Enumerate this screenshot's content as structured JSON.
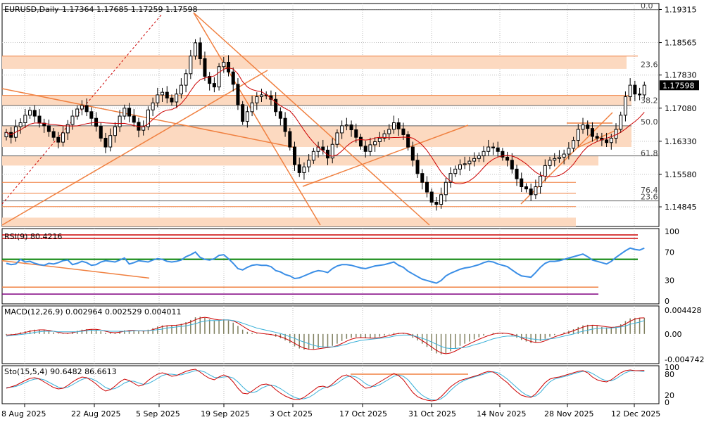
{
  "header": {
    "symbol_timeframe": "EURUSD,Daily",
    "ohlc": "1.17364 1.17685 1.17259 1.17598"
  },
  "colors": {
    "bull": "#ffffff",
    "bear": "#000000",
    "ma": "#cc0000",
    "fib_zone": "#fcd9c0",
    "trend": "#f08040",
    "rsi": "#3a8ee6",
    "macd_main": "#cc0000",
    "macd_signal": "#3ab0d8",
    "macd_hist": "#808060",
    "stoch_main": "#cc0000",
    "stoch_signal": "#3ab0d8",
    "grid": "#c0c0c0",
    "current_price_bg": "#000000"
  },
  "chart_data": [
    {
      "type": "candlestick",
      "name": "price",
      "y_ticks": [
        "1.19315",
        "1.18565",
        "1.17830",
        "1.17080",
        "1.16330",
        "1.15580",
        "1.14845"
      ],
      "y_range": [
        1.144,
        1.1945
      ],
      "current_price": "1.17598",
      "fib_labels": [
        {
          "label": "0.0",
          "value": 1.1931
        },
        {
          "label": "23.6",
          "value": 1.1798
        },
        {
          "label": "38.2",
          "value": 1.1716
        },
        {
          "label": "50.0",
          "value": 1.1668
        },
        {
          "label": "61.8",
          "value": 1.1597
        },
        {
          "label": "76.4",
          "value": 1.1513
        },
        {
          "label": "23.6",
          "value": 1.1498
        }
      ],
      "x_labels": [
        "8 Aug 2025",
        "22 Aug 2025",
        "5 Sep 2025",
        "19 Sep 2025",
        "3 Oct 2025",
        "17 Oct 2025",
        "31 Oct 2025",
        "14 Nov 2025",
        "28 Nov 2025",
        "12 Dec 2025"
      ],
      "closes": [
        1.1653,
        1.1642,
        1.1666,
        1.1675,
        1.1692,
        1.1703,
        1.169,
        1.1674,
        1.1668,
        1.1655,
        1.1642,
        1.1631,
        1.1652,
        1.1671,
        1.169,
        1.1706,
        1.1714,
        1.17,
        1.1685,
        1.1667,
        1.164,
        1.162,
        1.1646,
        1.1666,
        1.169,
        1.1708,
        1.169,
        1.1676,
        1.1658,
        1.1666,
        1.1704,
        1.172,
        1.1738,
        1.1744,
        1.1731,
        1.1722,
        1.174,
        1.176,
        1.1786,
        1.1826,
        1.1856,
        1.182,
        1.178,
        1.1764,
        1.1756,
        1.1802,
        1.1812,
        1.179,
        1.1762,
        1.1716,
        1.1678,
        1.17,
        1.172,
        1.1734,
        1.1738,
        1.1736,
        1.1728,
        1.17,
        1.1685,
        1.1655,
        1.162,
        1.158,
        1.1562,
        1.1575,
        1.159,
        1.161,
        1.162,
        1.1613,
        1.1595,
        1.1626,
        1.1652,
        1.1668,
        1.167,
        1.1659,
        1.1642,
        1.1622,
        1.161,
        1.1625,
        1.1632,
        1.164,
        1.165,
        1.166,
        1.1675,
        1.1661,
        1.1648,
        1.162,
        1.159,
        1.156,
        1.154,
        1.1518,
        1.1495,
        1.149,
        1.1512,
        1.154,
        1.156,
        1.157,
        1.158,
        1.1582,
        1.1588,
        1.1594,
        1.16,
        1.161,
        1.162,
        1.1618,
        1.161,
        1.1597,
        1.159,
        1.157,
        1.1548,
        1.153,
        1.1525,
        1.1512,
        1.153,
        1.1554,
        1.1578,
        1.159,
        1.1594,
        1.1597,
        1.1604,
        1.1617,
        1.1635,
        1.166,
        1.167,
        1.1662,
        1.1644,
        1.164,
        1.1636,
        1.163,
        1.164,
        1.166,
        1.1692,
        1.1734,
        1.176,
        1.174,
        1.1738,
        1.176
      ],
      "ma_label": "moving average"
    },
    {
      "type": "line",
      "name": "RSI",
      "title": "RSI(9) 80.4216",
      "y_ticks": [
        "100",
        "70",
        "30",
        "0"
      ],
      "ylim": [
        0,
        100
      ],
      "levels": [
        85,
        80,
        70,
        20,
        10
      ],
      "values": [
        57,
        55,
        56,
        63,
        59,
        60,
        57,
        55,
        54,
        57,
        56,
        58,
        61,
        62,
        55,
        57,
        60,
        58,
        54,
        55,
        59,
        61,
        60,
        59,
        62,
        65,
        56,
        58,
        61,
        60,
        59,
        62,
        64,
        63,
        60,
        59,
        60,
        62,
        67,
        70,
        74,
        66,
        63,
        62,
        64,
        69,
        70,
        64,
        57,
        49,
        47,
        51,
        54,
        55,
        54,
        54,
        52,
        46,
        44,
        40,
        38,
        34,
        35,
        38,
        41,
        44,
        46,
        45,
        43,
        49,
        53,
        55,
        55,
        54,
        52,
        50,
        49,
        51,
        53,
        54,
        55,
        57,
        59,
        54,
        51,
        45,
        41,
        37,
        33,
        31,
        29,
        27,
        31,
        38,
        42,
        45,
        48,
        50,
        51,
        53,
        55,
        58,
        60,
        59,
        56,
        54,
        52,
        47,
        42,
        38,
        37,
        36,
        43,
        51,
        57,
        60,
        60,
        61,
        63,
        65,
        67,
        69,
        71,
        67,
        62,
        60,
        58,
        56,
        60,
        66,
        71,
        76,
        80,
        78,
        77,
        80
      ]
    },
    {
      "type": "bar+line",
      "name": "MACD",
      "title": "MACD(12,26,9) 0.002964 0.002529 0.004011",
      "y_ticks": [
        "0.004428",
        "0.00",
        "-0.004742"
      ],
      "ylim": [
        -0.0055,
        0.0052
      ],
      "series": [
        {
          "name": "main",
          "values": [
            -0.0002,
            -0.0001,
            0.0001,
            0.0003,
            0.0005,
            0.0007,
            0.0008,
            0.0008,
            0.0007,
            0.0005,
            0.0003,
            0.0001,
            0.0001,
            0.0002,
            0.0004,
            0.0006,
            0.0008,
            0.0009,
            0.0009,
            0.0008,
            0.0005,
            0.0002,
            0.0002,
            0.0003,
            0.0005,
            0.0007,
            0.0007,
            0.0006,
            0.0005,
            0.0005,
            0.0008,
            0.0011,
            0.0014,
            0.0016,
            0.0016,
            0.0016,
            0.0017,
            0.0019,
            0.0022,
            0.0026,
            0.0031,
            0.0032,
            0.003,
            0.0027,
            0.0025,
            0.0026,
            0.0027,
            0.0025,
            0.0021,
            0.0015,
            0.0008,
            0.0004,
            0.0002,
            0.0001,
            0.0,
            -0.0001,
            -0.0002,
            -0.0005,
            -0.0008,
            -0.0012,
            -0.0017,
            -0.0023,
            -0.0027,
            -0.0029,
            -0.0029,
            -0.0028,
            -0.0026,
            -0.0025,
            -0.0025,
            -0.0022,
            -0.0018,
            -0.0013,
            -0.0009,
            -0.0007,
            -0.0006,
            -0.0007,
            -0.0008,
            -0.0008,
            -0.0007,
            -0.0005,
            -0.0003,
            -0.0001,
            0.0002,
            0.0002,
            0.0001,
            -0.0002,
            -0.0007,
            -0.0012,
            -0.0018,
            -0.0024,
            -0.0031,
            -0.0036,
            -0.0038,
            -0.0036,
            -0.0032,
            -0.0027,
            -0.0022,
            -0.0018,
            -0.0014,
            -0.001,
            -0.0006,
            -0.0003,
            0.0,
            0.0002,
            0.0002,
            0.0001,
            0.0,
            -0.0003,
            -0.0007,
            -0.0011,
            -0.0014,
            -0.0017,
            -0.0016,
            -0.0013,
            -0.0009,
            -0.0005,
            -0.0002,
            0.0,
            0.0003,
            0.0006,
            0.0009,
            0.0013,
            0.0016,
            0.0017,
            0.0016,
            0.0015,
            0.0013,
            0.0012,
            0.0012,
            0.0014,
            0.0018,
            0.0024,
            0.0029,
            0.003,
            0.003,
            0.003
          ]
        },
        {
          "name": "signal",
          "values": [
            -0.0004,
            -0.0003,
            -0.0002,
            -0.0001,
            0.0,
            0.0001,
            0.0003,
            0.0004,
            0.0005,
            0.0005,
            0.0005,
            0.0004,
            0.0004,
            0.0004,
            0.0004,
            0.0004,
            0.0005,
            0.0006,
            0.0007,
            0.0007,
            0.0007,
            0.0006,
            0.0005,
            0.0005,
            0.0005,
            0.0005,
            0.0005,
            0.0006,
            0.0006,
            0.0006,
            0.0006,
            0.0007,
            0.0008,
            0.0009,
            0.0011,
            0.0012,
            0.0013,
            0.0014,
            0.0015,
            0.0017,
            0.0019,
            0.0022,
            0.0024,
            0.0025,
            0.0025,
            0.0025,
            0.0026,
            0.0026,
            0.0025,
            0.0023,
            0.002,
            0.0017,
            0.0014,
            0.0011,
            0.0009,
            0.0007,
            0.0005,
            0.0003,
            0.0001,
            -0.0002,
            -0.0005,
            -0.0008,
            -0.0012,
            -0.0015,
            -0.0018,
            -0.0021,
            -0.0023,
            -0.0024,
            -0.0024,
            -0.0024,
            -0.0023,
            -0.0021,
            -0.0019,
            -0.0016,
            -0.0014,
            -0.0012,
            -0.0011,
            -0.001,
            -0.0009,
            -0.0008,
            -0.0007,
            -0.0006,
            -0.0004,
            -0.0003,
            -0.0002,
            -0.0002,
            -0.0003,
            -0.0005,
            -0.0008,
            -0.0011,
            -0.0015,
            -0.0019,
            -0.0023,
            -0.0026,
            -0.0027,
            -0.0027,
            -0.0026,
            -0.0025,
            -0.0023,
            -0.002,
            -0.0018,
            -0.0015,
            -0.0012,
            -0.0009,
            -0.0007,
            -0.0005,
            -0.0004,
            -0.0004,
            -0.0004,
            -0.0006,
            -0.0007,
            -0.0009,
            -0.001,
            -0.0011,
            -0.001,
            -0.0009,
            -0.0008,
            -0.0006,
            -0.0004,
            -0.0002,
            0.0,
            0.0003,
            0.0005,
            0.0007,
            0.0009,
            0.001,
            0.0011,
            0.0011,
            0.0011,
            0.0012,
            0.0013,
            0.0015,
            0.0018,
            0.002,
            0.0022,
            0.0025
          ]
        }
      ]
    },
    {
      "type": "line",
      "name": "Stochastic",
      "title": "Sto(15,5,4) 90.6482 86.6613",
      "y_ticks": [
        "100",
        "80",
        "20",
        "0"
      ],
      "ylim": [
        0,
        100
      ],
      "series": [
        {
          "name": "main",
          "values": [
            40,
            44,
            48,
            55,
            62,
            68,
            70,
            66,
            58,
            50,
            42,
            38,
            40,
            48,
            58,
            66,
            72,
            70,
            62,
            52,
            40,
            32,
            36,
            46,
            58,
            66,
            62,
            54,
            46,
            50,
            62,
            72,
            80,
            84,
            80,
            74,
            76,
            82,
            88,
            92,
            94,
            86,
            76,
            68,
            64,
            72,
            78,
            72,
            58,
            40,
            26,
            24,
            32,
            42,
            50,
            52,
            48,
            36,
            26,
            18,
            12,
            8,
            8,
            14,
            24,
            34,
            44,
            46,
            42,
            52,
            64,
            74,
            78,
            72,
            62,
            50,
            40,
            42,
            50,
            58,
            66,
            74,
            82,
            76,
            64,
            46,
            28,
            16,
            10,
            6,
            4,
            6,
            16,
            30,
            44,
            54,
            62,
            66,
            70,
            74,
            78,
            84,
            88,
            86,
            78,
            66,
            56,
            42,
            30,
            20,
            16,
            14,
            24,
            40,
            56,
            66,
            70,
            72,
            76,
            80,
            84,
            88,
            90,
            84,
            72,
            64,
            60,
            58,
            64,
            74,
            84,
            90,
            92,
            90,
            90,
            91
          ]
        },
        {
          "name": "signal",
          "values": [
            42,
            43,
            45,
            50,
            56,
            62,
            66,
            67,
            64,
            57,
            50,
            43,
            40,
            43,
            50,
            58,
            65,
            69,
            67,
            61,
            52,
            42,
            37,
            39,
            46,
            55,
            60,
            60,
            55,
            51,
            53,
            60,
            68,
            76,
            80,
            80,
            78,
            78,
            82,
            86,
            90,
            90,
            86,
            78,
            71,
            70,
            72,
            73,
            69,
            58,
            44,
            32,
            27,
            31,
            40,
            46,
            49,
            46,
            39,
            30,
            21,
            14,
            10,
            10,
            14,
            22,
            32,
            40,
            44,
            47,
            54,
            64,
            72,
            75,
            72,
            64,
            53,
            46,
            45,
            50,
            58,
            66,
            74,
            78,
            74,
            64,
            48,
            32,
            20,
            12,
            7,
            6,
            10,
            20,
            34,
            46,
            56,
            63,
            68,
            72,
            76,
            80,
            85,
            87,
            84,
            76,
            66,
            54,
            42,
            30,
            21,
            16,
            18,
            28,
            44,
            58,
            66,
            70,
            73,
            77,
            81,
            85,
            88,
            88,
            82,
            74,
            66,
            61,
            61,
            67,
            76,
            84,
            89,
            90,
            89,
            87
          ]
        }
      ]
    }
  ]
}
